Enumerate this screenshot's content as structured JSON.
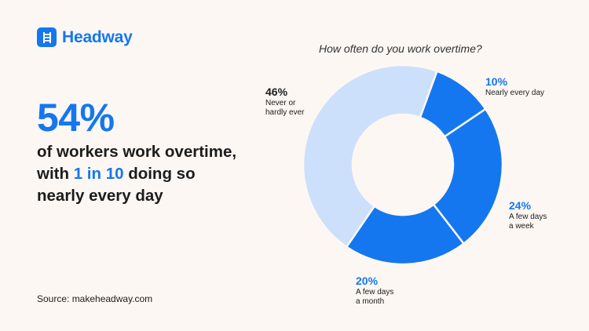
{
  "brand": {
    "name": "Headway",
    "color": "#1477f0"
  },
  "headline": {
    "stat": "54%"
  },
  "subtext": {
    "before": "of workers work overtime, with ",
    "highlight": "1 in 10",
    "after": " doing so nearly every day"
  },
  "source": "Source: makeheadway.com",
  "chart_data": {
    "type": "pie",
    "style": "donut",
    "title": "How often do you work overtime?",
    "slices": [
      {
        "label": "Nearly every day",
        "value": 10,
        "pct_label": "10%",
        "color": "#1477f0"
      },
      {
        "label": "A few days\na week",
        "value": 24,
        "pct_label": "24%",
        "color": "#1477f0"
      },
      {
        "label": "A few days\na month",
        "value": 20,
        "pct_label": "20%",
        "color": "#1477f0"
      },
      {
        "label": "Never or\nhardly ever",
        "value": 46,
        "pct_label": "46%",
        "color": "#cde0fb"
      }
    ]
  }
}
